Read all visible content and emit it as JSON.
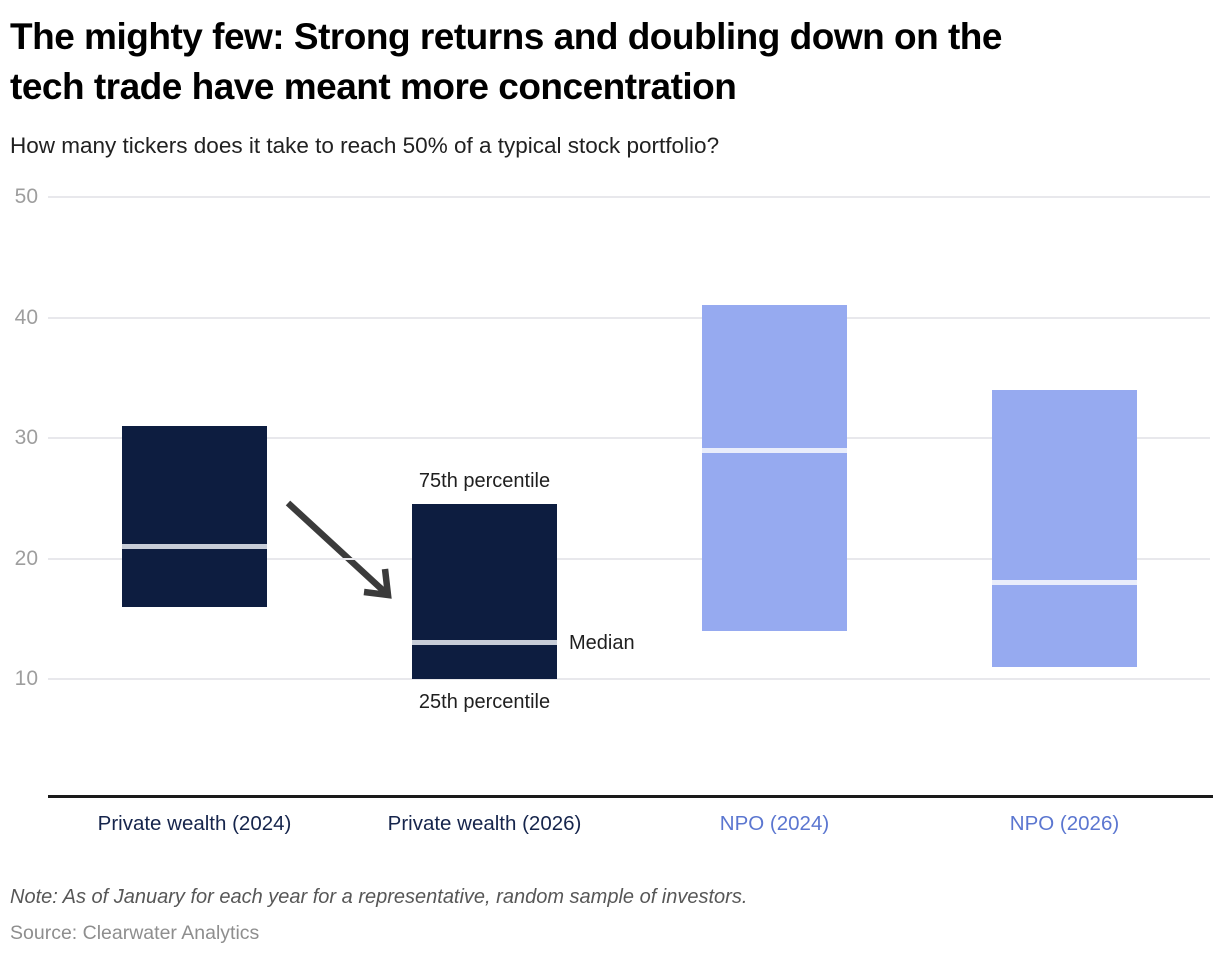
{
  "header": {
    "title_lines": [
      "The mighty few: Strong returns and doubling down on the",
      "tech trade have meant more concentration"
    ],
    "subtitle": "How many tickers does it take to reach 50% of a typical stock portfolio?"
  },
  "chart_data": {
    "type": "bar",
    "variant": "floating-range-bars-25th-to-75th-percentile-with-median",
    "title": "The mighty few: Strong returns and doubling down on the tech trade have meant more concentration",
    "subtitle": "How many tickers does it take to reach 50% of a typical stock portfolio?",
    "categories": [
      "Private wealth (2024)",
      "Private wealth (2026)",
      "NPO (2024)",
      "NPO (2026)"
    ],
    "series": [
      {
        "name": "Private wealth (2024)",
        "p25": 16,
        "median": 21,
        "p75": 31,
        "bar_color": "#0d1d40",
        "median_line_color": "#c7cdd8",
        "label_color": "#16254c"
      },
      {
        "name": "Private wealth (2026)",
        "p25": 10,
        "median": 13,
        "p75": 24.5,
        "bar_color": "#0d1d40",
        "median_line_color": "#c7cdd8",
        "label_color": "#16254c"
      },
      {
        "name": "NPO (2024)",
        "p25": 14,
        "median": 29,
        "p75": 41,
        "bar_color": "#96aaf0",
        "median_line_color": "#e9edfb",
        "label_color": "#5b76d0"
      },
      {
        "name": "NPO (2026)",
        "p25": 11,
        "median": 18,
        "p75": 34,
        "bar_color": "#96aaf0",
        "median_line_color": "#e9edfb",
        "label_color": "#5b76d0"
      }
    ],
    "yticks": [
      50,
      40,
      30,
      20,
      10
    ],
    "ylim": [
      0,
      50
    ],
    "xlabel": "",
    "ylabel": "",
    "grid": "horizontal",
    "legend": "none",
    "annotations": {
      "p75": "75th percentile",
      "median": "Median",
      "p25": "25th percentile"
    }
  },
  "icons": {
    "trend_arrow": "arrow-down-right"
  },
  "colors": {
    "navy": "#0d1d40",
    "periwinkle": "#96aaf0",
    "gridline": "#e8e8ec",
    "axis_line": "#1a1a1a",
    "tick_label": "#9e9e9e",
    "annotation_text": "#1f1f1f",
    "arrow": "#3b3b3b",
    "note_text": "#575757",
    "source_text": "#8e8e8e"
  },
  "footer": {
    "note": "Note: As of January for each year for a representative, random sample of investors.",
    "source": "Source: Clearwater Analytics"
  }
}
